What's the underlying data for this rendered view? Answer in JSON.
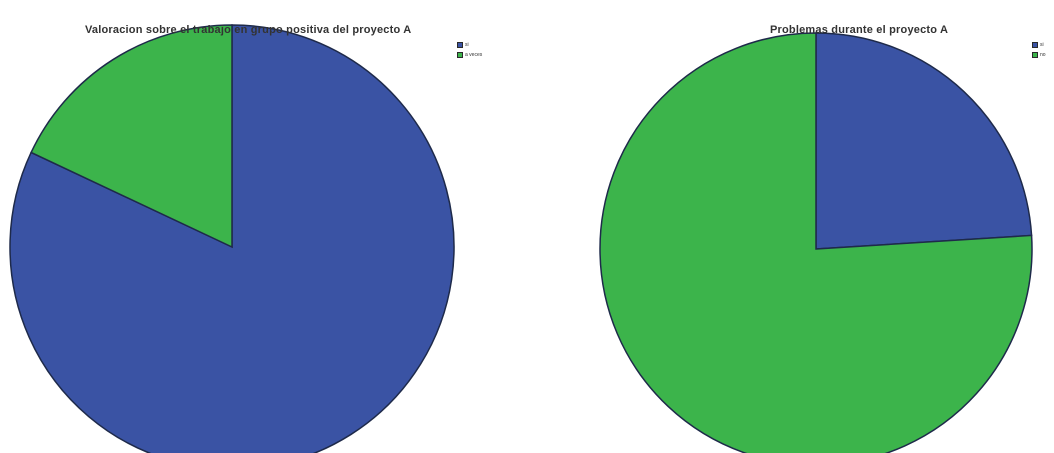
{
  "chart_data": [
    {
      "type": "pie",
      "title": "Valoracion sobre el trabajo en grupo positiva del proyecto A",
      "categories": [
        "si",
        "a veces"
      ],
      "values": [
        82,
        18
      ],
      "colors": [
        "#3a53a4",
        "#3cb44b"
      ]
    },
    {
      "type": "pie",
      "title": "Problemas durante el proyecto A",
      "categories": [
        "si",
        "no"
      ],
      "values": [
        24,
        76
      ],
      "colors": [
        "#3a53a4",
        "#3cb44b"
      ]
    }
  ]
}
